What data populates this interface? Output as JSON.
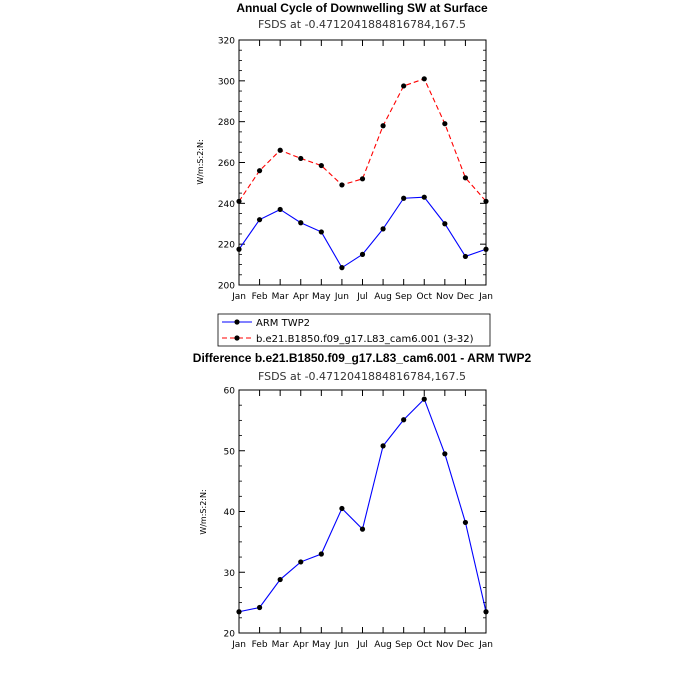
{
  "chart_data": [
    {
      "type": "line",
      "title": "Annual Cycle of Downwelling SW at Surface",
      "subtitle": "FSDS at -0.4712041884816784,167.5",
      "ylabel": "W/m:S:2:N:",
      "xlabel": "",
      "categories": [
        "Jan",
        "Feb",
        "Mar",
        "Apr",
        "May",
        "Jun",
        "Jul",
        "Aug",
        "Sep",
        "Oct",
        "Nov",
        "Dec",
        "Jan"
      ],
      "ylim": [
        200,
        320
      ],
      "yticks": [
        "200",
        "220",
        "240",
        "260",
        "280",
        "300",
        "320"
      ],
      "series": [
        {
          "name": "ARM TWP2",
          "color": "#0000ff",
          "dash": "solid",
          "values": [
            217.5,
            232,
            237,
            230.5,
            226,
            208.5,
            215,
            227.5,
            242.5,
            243,
            230,
            214,
            217.5
          ]
        },
        {
          "name": "b.e21.B1850.f09_g17.L83_cam6.001 (3-32)",
          "color": "#ff0000",
          "dash": "dashed",
          "values": [
            241,
            256,
            266,
            262,
            258.5,
            249,
            252,
            278,
            297.5,
            301,
            279,
            252.5,
            241
          ]
        }
      ]
    },
    {
      "type": "line",
      "title": "Difference b.e21.B1850.f09_g17.L83_cam6.001 - ARM TWP2",
      "subtitle": "FSDS at -0.4712041884816784,167.5",
      "ylabel": "W/m:S:2:N:",
      "xlabel": "",
      "categories": [
        "Jan",
        "Feb",
        "Mar",
        "Apr",
        "May",
        "Jun",
        "Jul",
        "Aug",
        "Sep",
        "Oct",
        "Nov",
        "Dec",
        "Jan"
      ],
      "ylim": [
        20,
        60
      ],
      "yticks": [
        "20",
        "30",
        "40",
        "50",
        "60"
      ],
      "series": [
        {
          "name": "Difference",
          "color": "#0000ff",
          "dash": "solid",
          "values": [
            23.5,
            24.2,
            28.8,
            31.7,
            33,
            40.5,
            37.1,
            50.8,
            55.1,
            58.5,
            49.5,
            38.2,
            23.5
          ]
        }
      ]
    }
  ]
}
